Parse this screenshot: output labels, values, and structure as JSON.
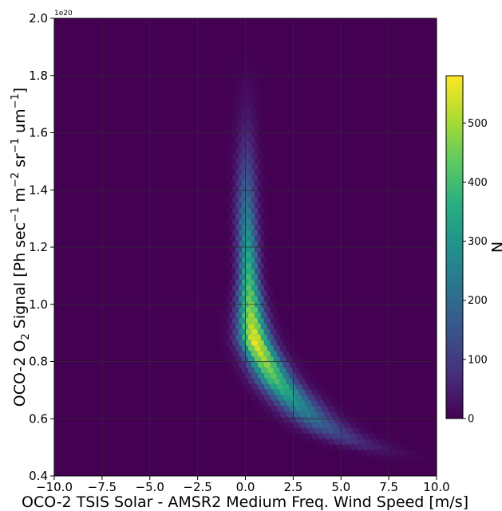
{
  "chart_data": {
    "type": "heatmap",
    "subtype": "hexbin",
    "title": "",
    "xlabel": "OCO-2 TSIS Solar - AMSR2 Medium Freq. Wind Speed [m/s]",
    "ylabel_parts": {
      "p1": "OCO-2 O",
      "p1_sub": "2",
      "p2": " Signal [Ph sec",
      "p2_sup": "−1",
      "p3": " m",
      "p3_sup": "−2",
      "p4": " sr",
      "p4_sup": "−1",
      "p5": " um",
      "p5_sup": "−1",
      "p6": "]"
    },
    "xlim": [
      -10,
      10
    ],
    "ylim": [
      0.4,
      2.0
    ],
    "y_scale_offset": "1e20",
    "grid": true,
    "x_ticks": [
      {
        "v": -10,
        "label": "−10.0"
      },
      {
        "v": -7.5,
        "label": "−7.5"
      },
      {
        "v": -5,
        "label": "−5.0"
      },
      {
        "v": -2.5,
        "label": "−2.5"
      },
      {
        "v": 0,
        "label": "0.0"
      },
      {
        "v": 2.5,
        "label": "2.5"
      },
      {
        "v": 5,
        "label": "5.0"
      },
      {
        "v": 7.5,
        "label": "7.5"
      },
      {
        "v": 10,
        "label": "10.0"
      }
    ],
    "y_ticks": [
      {
        "v": 0.4,
        "label": "0.4"
      },
      {
        "v": 0.6,
        "label": "0.6"
      },
      {
        "v": 0.8,
        "label": "0.8"
      },
      {
        "v": 1.0,
        "label": "1.0"
      },
      {
        "v": 1.2,
        "label": "1.2"
      },
      {
        "v": 1.4,
        "label": "1.4"
      },
      {
        "v": 1.6,
        "label": "1.6"
      },
      {
        "v": 1.8,
        "label": "1.8"
      },
      {
        "v": 2.0,
        "label": "2.0"
      }
    ],
    "colorbar": {
      "label": "N",
      "colormap": "viridis",
      "range": [
        0,
        580
      ],
      "ticks": [
        {
          "v": 0,
          "label": "0"
        },
        {
          "v": 100,
          "label": "100"
        },
        {
          "v": 200,
          "label": "200"
        },
        {
          "v": 300,
          "label": "300"
        },
        {
          "v": 400,
          "label": "400"
        },
        {
          "v": 500,
          "label": "500"
        }
      ]
    },
    "density_ridge": [
      {
        "y": 1.85,
        "x": 0.05,
        "peak": 3
      },
      {
        "y": 1.75,
        "x": 0.05,
        "peak": 15
      },
      {
        "y": 1.65,
        "x": 0.05,
        "peak": 40
      },
      {
        "y": 1.55,
        "x": 0.05,
        "peak": 80
      },
      {
        "y": 1.45,
        "x": 0.05,
        "peak": 150
      },
      {
        "y": 1.35,
        "x": 0.05,
        "peak": 220
      },
      {
        "y": 1.25,
        "x": 0.1,
        "peak": 290
      },
      {
        "y": 1.15,
        "x": 0.15,
        "peak": 360
      },
      {
        "y": 1.05,
        "x": 0.2,
        "peak": 430
      },
      {
        "y": 0.95,
        "x": 0.3,
        "peak": 500
      },
      {
        "y": 0.87,
        "x": 0.5,
        "peak": 570
      },
      {
        "y": 0.8,
        "x": 1.0,
        "peak": 490
      },
      {
        "y": 0.73,
        "x": 1.6,
        "peak": 410
      },
      {
        "y": 0.67,
        "x": 2.4,
        "peak": 320
      },
      {
        "y": 0.61,
        "x": 3.3,
        "peak": 230
      },
      {
        "y": 0.56,
        "x": 4.3,
        "peak": 150
      },
      {
        "y": 0.52,
        "x": 5.5,
        "peak": 85
      },
      {
        "y": 0.49,
        "x": 6.8,
        "peak": 40
      },
      {
        "y": 0.47,
        "x": 8.0,
        "peak": 12
      }
    ],
    "colors": {
      "background": "#440154",
      "grid": "#2b2b2b"
    }
  }
}
